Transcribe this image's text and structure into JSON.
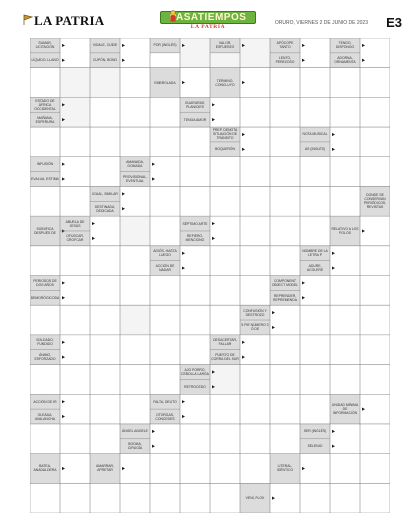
{
  "header": {
    "logo": "LA PATRIA",
    "banner_title": "PASATIEMPOS",
    "banner_sub": "LA PATRIA",
    "date": "ORURO, VIERNES 2 DE JUNIO DE 2023",
    "page": "E3"
  },
  "colors": {
    "shade": "#dcdcdc",
    "line": "#8a8a8a",
    "accent_green": "#6db33f",
    "accent_red": "#d13b2b"
  },
  "puzzle": {
    "cols": 12,
    "rows": 16,
    "shaded": [
      [
        1,
        1
      ],
      [
        1,
        2
      ],
      [
        2,
        1
      ],
      [
        6,
        3
      ],
      [
        9,
        3
      ],
      [
        11,
        6
      ],
      [
        5,
        12
      ],
      [
        5,
        13
      ],
      [
        9,
        14
      ],
      [
        0,
        5
      ],
      [
        0,
        6
      ],
      [
        0,
        7
      ]
    ],
    "clues": [
      {
        "id": "c1",
        "text": "SUMAR, LICITACIÓN",
        "r": 0,
        "c": 0,
        "h": 0.5
      },
      {
        "id": "c2",
        "text": "LÍQUIDO, LLANO",
        "r": 0,
        "c": 0,
        "h": 0.5,
        "lower": true
      },
      {
        "id": "c3",
        "text": "VIDALE, CUIDE",
        "r": 0,
        "c": 2,
        "h": 0.5
      },
      {
        "id": "c4",
        "text": "CUPÓN, BONO",
        "r": 0,
        "c": 2,
        "h": 0.5,
        "lower": true
      },
      {
        "id": "c5",
        "text": "POR (INGLÉS)",
        "r": 0,
        "c": 4,
        "h": 0.5
      },
      {
        "id": "c6",
        "text": "VALOR, ESFUERZO",
        "r": 0,
        "c": 6,
        "h": 0.5
      },
      {
        "id": "c7",
        "text": "APÓCOPE TANTO",
        "r": 0,
        "c": 8,
        "h": 0.5
      },
      {
        "id": "c8",
        "text": "LENTO, PEREZOSO",
        "r": 0,
        "c": 8,
        "h": 0.5,
        "lower": true
      },
      {
        "id": "c9",
        "text": "TENGO, DISPONGO",
        "r": 0,
        "c": 10,
        "h": 0.5
      },
      {
        "id": "c10",
        "text": "ADORNA, ORNAMENTA",
        "r": 0,
        "c": 10,
        "h": 0.5,
        "lower": true
      },
      {
        "id": "c11",
        "text": "EMBROLADA",
        "r": 1,
        "c": 4,
        "h": 1
      },
      {
        "id": "c12",
        "text": "TERMINO, CONCLUYO",
        "r": 1,
        "c": 6,
        "h": 1
      },
      {
        "id": "c13",
        "text": "ESTADO DE ÁFRICA OCCIDENTAL",
        "r": 2,
        "c": 0,
        "h": 0.5
      },
      {
        "id": "c14",
        "text": "MAÑANA, ESPERURA",
        "r": 2,
        "c": 0,
        "h": 0.5,
        "lower": true
      },
      {
        "id": "c15",
        "text": "GUARURAS, PLANICIES",
        "r": 2,
        "c": 5,
        "h": 0.5
      },
      {
        "id": "c16",
        "text": "TENGA AMOR",
        "r": 2,
        "c": 5,
        "h": 0.5,
        "lower": true
      },
      {
        "id": "c17",
        "text": "PREP. DENOTA SITUACIÓN DE TRÁNSITO",
        "r": 3,
        "c": 6,
        "h": 0.5
      },
      {
        "id": "c18",
        "text": "BOQUERÓN",
        "r": 3,
        "c": 6,
        "h": 0.5,
        "lower": true
      },
      {
        "id": "c19",
        "text": "NOTA MUSICAL",
        "r": 3,
        "c": 9,
        "h": 0.5
      },
      {
        "id": "c20",
        "text": "AS (INGLÉS)",
        "r": 3,
        "c": 9,
        "h": 0.5,
        "lower": true
      },
      {
        "id": "c21",
        "text": "INFUSIÓN",
        "r": 4,
        "c": 0,
        "h": 0.5
      },
      {
        "id": "c22",
        "text": "EVALUA, ESTIMA",
        "r": 4,
        "c": 0,
        "h": 0.5,
        "lower": true
      },
      {
        "id": "c23",
        "text": "AMANADA, DOMADA",
        "r": 4,
        "c": 3,
        "h": 0.5
      },
      {
        "id": "c24",
        "text": "PROVISIONAL, EVENTUAL",
        "r": 4,
        "c": 3,
        "h": 0.5,
        "lower": true
      },
      {
        "id": "c25",
        "text": "IGUAL, SIMILAR",
        "r": 5,
        "c": 2,
        "h": 0.5
      },
      {
        "id": "c26",
        "text": "DESTINADA, DEDICADA",
        "r": 5,
        "c": 2,
        "h": 0.5,
        "lower": true
      },
      {
        "id": "c27",
        "text": "DONDE SE CONSERVAN PERIÓDICOS, REVISTAS",
        "r": 5,
        "c": 11,
        "h": 1
      },
      {
        "id": "c28",
        "text": "SIGNIFICA DESPUÉS DE",
        "r": 6,
        "c": 0,
        "h": 1
      },
      {
        "id": "c29",
        "text": "ABUELA DE JESÚS",
        "r": 6,
        "c": 1,
        "h": 0.5
      },
      {
        "id": "c30",
        "text": "OFUSCAR, CROFCAR",
        "r": 6,
        "c": 1,
        "h": 0.5,
        "lower": true
      },
      {
        "id": "c31",
        "text": "SÉPTIMO ARTE",
        "r": 6,
        "c": 5,
        "h": 0.5
      },
      {
        "id": "c32",
        "text": "REFIERO, MENCIONO",
        "r": 6,
        "c": 5,
        "h": 0.5,
        "lower": true
      },
      {
        "id": "c33",
        "text": "RELATIVO A LOS POLOS",
        "r": 6,
        "c": 10,
        "h": 1
      },
      {
        "id": "c34",
        "text": "ADIÓS, HASTA LUEGO",
        "r": 7,
        "c": 4,
        "h": 0.5
      },
      {
        "id": "c35",
        "text": "ACCIÓN DE NADAR",
        "r": 7,
        "c": 4,
        "h": 0.5,
        "lower": true
      },
      {
        "id": "c36",
        "text": "NOMBRE DE LA LETRA P",
        "r": 7,
        "c": 9,
        "h": 0.5
      },
      {
        "id": "c37",
        "text": "ADURE, ACOLERE",
        "r": 7,
        "c": 9,
        "h": 0.5,
        "lower": true
      },
      {
        "id": "c38",
        "text": "PERIODOS DE DOS AÑOS",
        "r": 8,
        "c": 0,
        "h": 0.5
      },
      {
        "id": "c39",
        "text": "DEMORÓGICODA",
        "r": 8,
        "c": 0,
        "h": 0.5,
        "lower": true
      },
      {
        "id": "c40",
        "text": "COMPONENT OBJECT MODEL",
        "r": 8,
        "c": 8,
        "h": 0.5
      },
      {
        "id": "c41",
        "text": "REPRENDER, REPREMENDA",
        "r": 8,
        "c": 8,
        "h": 0.5,
        "lower": true
      },
      {
        "id": "c42",
        "text": "CONFUSIÓN Y DESTROZO",
        "r": 9,
        "c": 7,
        "h": 0.5
      },
      {
        "id": "c43",
        "text": "5 PIE NÚMERO 3 Ó DE",
        "r": 9,
        "c": 7,
        "h": 0.5,
        "lower": true
      },
      {
        "id": "c44",
        "text": "SOLDADO, FUNDIDO",
        "r": 10,
        "c": 0,
        "h": 0.5
      },
      {
        "id": "c45",
        "text": "ÁNIMO, ESFORZADO",
        "r": 10,
        "c": 0,
        "h": 0.5,
        "lower": true
      },
      {
        "id": "c46",
        "text": "DESACERTAR, FALLAR",
        "r": 10,
        "c": 6,
        "h": 0.5
      },
      {
        "id": "c47",
        "text": "PUESTO DE CORRA DEL SUR",
        "r": 10,
        "c": 6,
        "h": 0.5,
        "lower": true
      },
      {
        "id": "c48",
        "text": "AJO PORRO, CEBOLLA LARGA",
        "r": 11,
        "c": 5,
        "h": 0.5
      },
      {
        "id": "c49",
        "text": "RETROCEDO",
        "r": 11,
        "c": 5,
        "h": 0.5,
        "lower": true
      },
      {
        "id": "c50",
        "text": "ACCIÓN DE IR",
        "r": 12,
        "c": 0,
        "h": 0.5
      },
      {
        "id": "c51",
        "text": "OLEADA, AVALANCHA",
        "r": 12,
        "c": 0,
        "h": 0.5,
        "lower": true
      },
      {
        "id": "c52",
        "text": "FALTA, DEUTO",
        "r": 12,
        "c": 4,
        "h": 0.5
      },
      {
        "id": "c53",
        "text": "OTORGAS, CONCEDES",
        "r": 12,
        "c": 4,
        "h": 0.5,
        "lower": true
      },
      {
        "id": "c54",
        "text": "UNIDAD MÍNIMA DE INFORMACIÓN",
        "r": 12,
        "c": 10,
        "h": 1
      },
      {
        "id": "c55",
        "text": "ÁNGEL ANGELE",
        "r": 13,
        "c": 3,
        "h": 0.5
      },
      {
        "id": "c56",
        "text": "BODMA, CIRUGÍA",
        "r": 13,
        "c": 3,
        "h": 0.5,
        "lower": true
      },
      {
        "id": "c57",
        "text": "SER (INGLÉS)",
        "r": 13,
        "c": 9,
        "h": 0.5
      },
      {
        "id": "c58",
        "text": "SELENIO",
        "r": 13,
        "c": 9,
        "h": 0.5,
        "lower": true
      },
      {
        "id": "c59",
        "text": "BATEA, ANADALDERA",
        "r": 14,
        "c": 0,
        "h": 1
      },
      {
        "id": "c60",
        "text": "AMARRAR, APRETAR",
        "r": 14,
        "c": 2,
        "h": 1
      },
      {
        "id": "c61",
        "text": "LITERAL, IDÉNTICO",
        "r": 14,
        "c": 8,
        "h": 1
      },
      {
        "id": "c62",
        "text": "VENÍ, FLOK",
        "r": 15,
        "c": 7,
        "h": 1
      }
    ]
  }
}
